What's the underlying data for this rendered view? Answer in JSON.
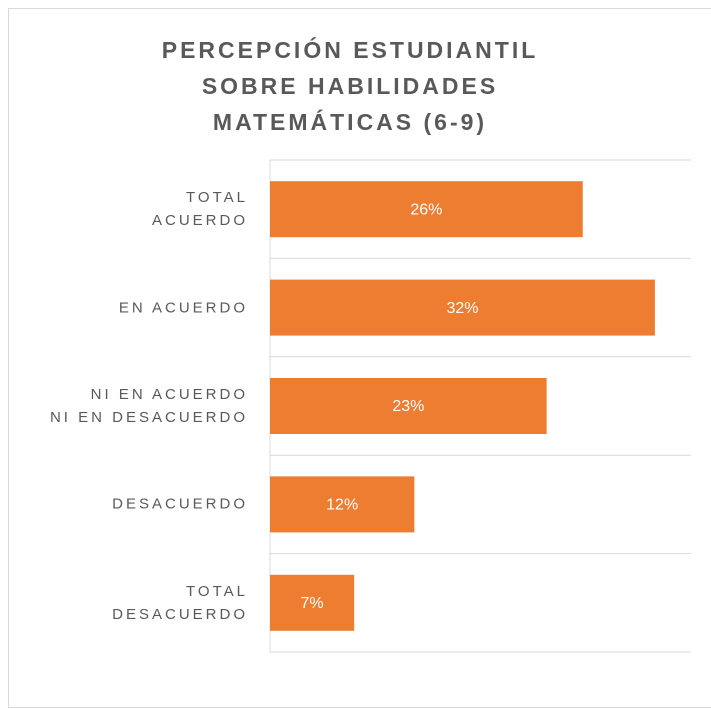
{
  "chart_data": {
    "type": "bar",
    "orientation": "horizontal",
    "title": "PERCEPCIÓN ESTUDIANTIL\nSOBRE HABILIDADES\nMATEMÁTICAS (6-9)",
    "categories": [
      "TOTAL\nACUERDO",
      "EN ACUERDO",
      "NI EN ACUERDO\nNI EN DESACUERDO",
      "DESACUERDO",
      "TOTAL\nDESACUERDO"
    ],
    "values": [
      26,
      32,
      23,
      12,
      7
    ],
    "value_labels": [
      "26%",
      "32%",
      "23%",
      "12%",
      "7%"
    ],
    "color": "#ed7d31",
    "xlim": [
      0,
      35
    ]
  }
}
